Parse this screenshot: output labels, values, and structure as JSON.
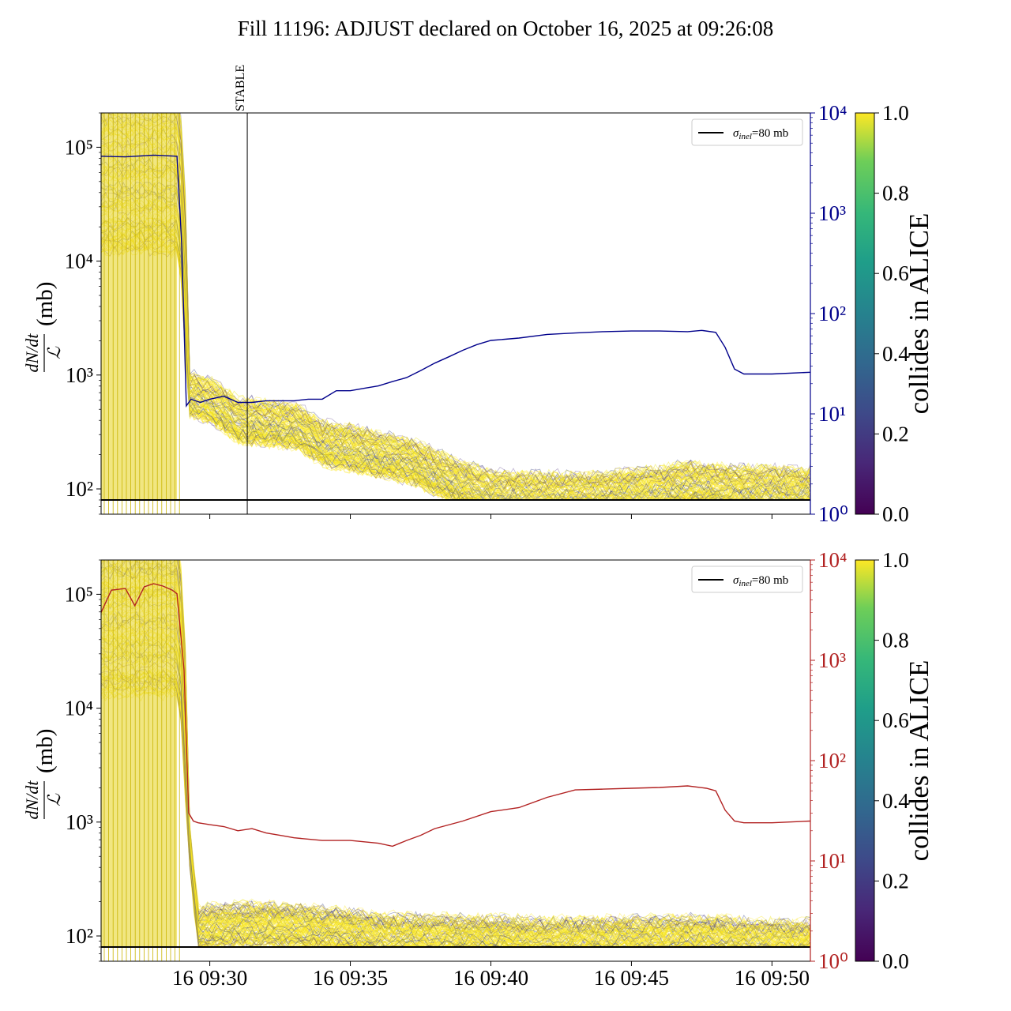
{
  "title": "Fill 11196: ADJUST declared on October 16, 2025 at 09:26:08",
  "chart_data": [
    {
      "type": "line",
      "panel": "top",
      "left_axis": {
        "label_fraction_num": "dN/dt",
        "label_fraction_den": "ℒ",
        "label_unit": "(mb)",
        "scale": "log",
        "ylim": [
          60,
          200000
        ],
        "tick_values": [
          100,
          1000,
          10000,
          100000
        ],
        "tick_labels": [
          "10²",
          "10³",
          "10⁴",
          "10⁵"
        ]
      },
      "right_axis": {
        "scale": "log",
        "ylim": [
          1,
          10000
        ],
        "color": "#00008b",
        "tick_values": [
          1,
          10,
          100,
          1000,
          10000
        ],
        "tick_labels": [
          "10⁰",
          "10¹",
          "10²",
          "10³",
          "10⁴"
        ]
      },
      "x_axis": {
        "start": "09:26:08",
        "end": "09:51:22",
        "tick_values": [
          "09:30",
          "09:35",
          "09:40",
          "09:45",
          "09:50"
        ],
        "tick_labels": [
          "16 09:30",
          "16 09:35",
          "16 09:40",
          "16 09:45",
          "16 09:50"
        ],
        "labels_shown": false
      },
      "annotation": {
        "text": "STABLE",
        "time": "09:31:20"
      },
      "legend": {
        "label": "σinel=80 mb",
        "label_main": "σ",
        "label_sub": "inel",
        "label_rest": "=80 mb",
        "placement": "upper right"
      },
      "reference_line": {
        "value": 80,
        "color": "#000000"
      },
      "series": [
        {
          "axis": "right",
          "color": "#00008b",
          "x": [
            "09:26:08",
            "09:27:00",
            "09:28:00",
            "09:28:50",
            "09:29:00",
            "09:29:10",
            "09:29:20",
            "09:29:40",
            "09:30:00",
            "09:30:30",
            "09:31:00",
            "09:31:30",
            "09:32:00",
            "09:32:30",
            "09:33:00",
            "09:33:30",
            "09:34:00",
            "09:34:30",
            "09:35:00",
            "09:35:30",
            "09:36:00",
            "09:36:30",
            "09:37:00",
            "09:37:30",
            "09:38:00",
            "09:38:30",
            "09:39:00",
            "09:39:30",
            "09:40:00",
            "09:41:00",
            "09:42:00",
            "09:43:00",
            "09:44:00",
            "09:45:00",
            "09:46:00",
            "09:47:00",
            "09:47:30",
            "09:48:00",
            "09:48:20",
            "09:48:40",
            "09:49:00",
            "09:50:00",
            "09:51:22"
          ],
          "y": [
            3700,
            3650,
            3800,
            3700,
            500,
            12,
            14,
            13,
            14,
            15,
            13,
            13,
            13.5,
            13.5,
            13.5,
            14,
            14,
            17,
            17,
            18,
            19,
            21,
            23,
            27,
            32,
            37,
            43,
            49,
            54,
            57,
            62,
            64,
            66,
            67,
            67,
            66,
            68,
            65,
            46,
            28,
            25,
            25,
            26
          ]
        },
        {
          "axis": "left",
          "name_note": "bunch bands (viridis colored by collides)",
          "x": [
            "09:26:08",
            "09:28:50",
            "09:29:10",
            "09:30:00",
            "09:31:00",
            "09:32:00",
            "09:33:00",
            "09:34:00",
            "09:35:00",
            "09:36:00",
            "09:37:00",
            "09:38:00",
            "09:39:00",
            "09:40:00",
            "09:41:00",
            "09:42:00",
            "09:43:00",
            "09:44:00",
            "09:45:00",
            "09:46:00",
            "09:47:00",
            "09:48:00",
            "09:49:00",
            "09:50:00",
            "09:51:22"
          ],
          "y_median": [
            60000,
            60000,
            700,
            600,
            400,
            380,
            360,
            250,
            230,
            200,
            180,
            140,
            110,
            92,
            90,
            88,
            88,
            90,
            95,
            100,
            110,
            105,
            100,
            100,
            98
          ]
        }
      ]
    },
    {
      "type": "line",
      "panel": "bottom",
      "left_axis": {
        "label_fraction_num": "dN/dt",
        "label_fraction_den": "ℒ",
        "label_unit": "(mb)",
        "scale": "log",
        "ylim": [
          60,
          200000
        ],
        "tick_values": [
          100,
          1000,
          10000,
          100000
        ],
        "tick_labels": [
          "10²",
          "10³",
          "10⁴",
          "10⁵"
        ]
      },
      "right_axis": {
        "scale": "log",
        "ylim": [
          1,
          10000
        ],
        "color": "#b22222",
        "tick_values": [
          1,
          10,
          100,
          1000,
          10000
        ],
        "tick_labels": [
          "10⁰",
          "10¹",
          "10²",
          "10³",
          "10⁴"
        ]
      },
      "x_axis": {
        "start": "09:26:08",
        "end": "09:51:22",
        "tick_values": [
          "09:30",
          "09:35",
          "09:40",
          "09:45",
          "09:50"
        ],
        "tick_labels": [
          "16 09:30",
          "16 09:35",
          "16 09:40",
          "16 09:45",
          "16 09:50"
        ],
        "labels_shown": true
      },
      "legend": {
        "label": "σinel=80 mb",
        "label_main": "σ",
        "label_sub": "inel",
        "label_rest": "=80 mb",
        "placement": "upper right"
      },
      "reference_line": {
        "value": 80,
        "color": "#000000"
      },
      "series": [
        {
          "axis": "right",
          "color": "#b22222",
          "x": [
            "09:26:08",
            "09:26:30",
            "09:27:00",
            "09:27:20",
            "09:27:40",
            "09:28:00",
            "09:28:20",
            "09:28:40",
            "09:28:50",
            "09:29:05",
            "09:29:15",
            "09:29:25",
            "09:29:35",
            "09:30:00",
            "09:30:30",
            "09:31:00",
            "09:31:30",
            "09:32:00",
            "09:32:30",
            "09:33:00",
            "09:34:00",
            "09:35:00",
            "09:36:00",
            "09:36:30",
            "09:37:00",
            "09:37:30",
            "09:38:00",
            "09:39:00",
            "09:40:00",
            "09:41:00",
            "09:42:00",
            "09:43:00",
            "09:44:00",
            "09:45:00",
            "09:46:00",
            "09:47:00",
            "09:47:40",
            "09:48:00",
            "09:48:20",
            "09:48:40",
            "09:49:00",
            "09:50:00",
            "09:51:22"
          ],
          "y": [
            3000,
            5000,
            5200,
            3500,
            5400,
            5800,
            5500,
            5000,
            4600,
            800,
            30,
            25,
            24,
            23,
            22,
            20,
            21,
            19,
            18,
            17,
            16,
            16,
            15,
            14,
            16,
            18,
            21,
            25,
            31,
            34,
            43,
            51,
            52,
            53,
            54,
            56,
            53,
            50,
            32,
            25,
            24,
            24,
            25
          ]
        },
        {
          "axis": "left",
          "name_note": "bunch bands (viridis colored by collides)",
          "x": [
            "09:26:08",
            "09:28:50",
            "09:29:10",
            "09:29:30",
            "09:30:00",
            "09:31:00",
            "09:32:00",
            "09:33:00",
            "09:34:00",
            "09:35:00",
            "09:36:00",
            "09:37:00",
            "09:38:00",
            "09:39:00",
            "09:40:00",
            "09:41:00",
            "09:42:00",
            "09:43:00",
            "09:44:00",
            "09:45:00",
            "09:46:00",
            "09:47:00",
            "09:48:00",
            "09:49:00",
            "09:50:00",
            "09:51:22"
          ],
          "y_median": [
            60000,
            60000,
            900,
            110,
            120,
            125,
            125,
            120,
            115,
            110,
            100,
            98,
            97,
            96,
            95,
            93,
            92,
            92,
            93,
            94,
            95,
            96,
            95,
            90,
            88,
            88
          ]
        }
      ]
    }
  ],
  "colorbar": {
    "label": "collides in ALICE",
    "tick_values": [
      0.0,
      0.2,
      0.4,
      0.6,
      0.8,
      1.0
    ],
    "tick_labels": [
      "0.0",
      "0.2",
      "0.4",
      "0.6",
      "0.8",
      "1.0"
    ],
    "colormap": "viridis"
  }
}
